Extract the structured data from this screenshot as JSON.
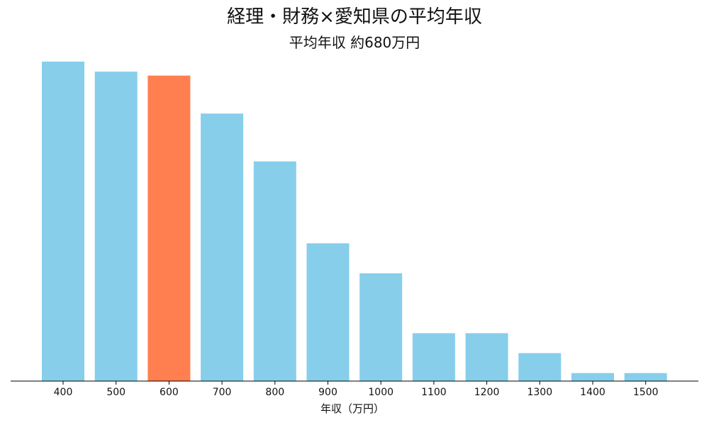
{
  "chart_data": {
    "type": "bar",
    "title": "経理・財務×愛知県の平均年収",
    "subtitle": "平均年収 約680万円",
    "xlabel": "年収（万円）",
    "ylabel": "",
    "categories": [
      "400",
      "500",
      "600",
      "700",
      "800",
      "900",
      "1000",
      "1100",
      "1200",
      "1300",
      "1400",
      "1500"
    ],
    "values": [
      16.0,
      15.5,
      15.3,
      13.4,
      11.0,
      6.9,
      5.4,
      2.4,
      2.4,
      1.4,
      0.4,
      0.4
    ],
    "ylim": [
      0,
      16.0
    ],
    "highlight_category": "600",
    "grid": false,
    "colors": {
      "bar": "#87CEEB",
      "highlight": "#FF7F50",
      "axis": "#000000"
    }
  }
}
